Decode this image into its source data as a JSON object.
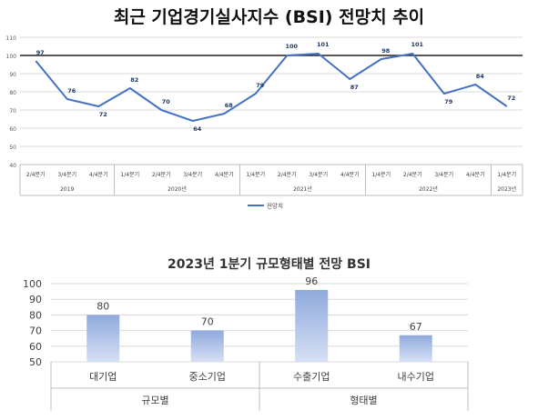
{
  "chart_data": [
    {
      "type": "line",
      "title": "최근 기업경기실사지수 (BSI) 전망치 추이",
      "categories": [
        "2/4분기",
        "3/4분기",
        "4/4분기",
        "1/4분기",
        "2/4분기",
        "3/4분기",
        "4/4분기",
        "1/4분기",
        "2/4분기",
        "3/4분기",
        "4/4분기",
        "1/4분기",
        "2/4분기",
        "3/4분기",
        "4/4분기",
        "1/4분기"
      ],
      "year_groups": [
        {
          "label": "2019",
          "span": 3
        },
        {
          "label": "2020년",
          "span": 4
        },
        {
          "label": "2021년",
          "span": 4
        },
        {
          "label": "2022년",
          "span": 4
        },
        {
          "label": "2023년",
          "span": 1
        }
      ],
      "series": [
        {
          "name": "전망치",
          "values": [
            97,
            76,
            72,
            82,
            70,
            64,
            68,
            79,
            100,
            101,
            87,
            98,
            101,
            79,
            84,
            72
          ]
        }
      ],
      "data_labels": [
        "97",
        "76",
        "72",
        "82",
        "70",
        "64",
        "68",
        "79",
        "100",
        "101",
        "87",
        "98",
        "101",
        "79",
        "84",
        "72"
      ],
      "ylim": [
        40,
        110
      ],
      "yticks": [
        40,
        50,
        60,
        70,
        80,
        90,
        100,
        110
      ],
      "reference_line": 100,
      "colors": {
        "line": "#4472c4",
        "label": "#1f3864",
        "reference": "#222222",
        "grid": "#d9d9d9"
      },
      "legend_position": "bottom"
    },
    {
      "type": "bar",
      "title": "2023년 1분기 규모형태별 전망 BSI",
      "categories": [
        "대기업",
        "중소기업",
        "수출기업",
        "내수기업"
      ],
      "groups": [
        {
          "label": "규모별",
          "span": 2
        },
        {
          "label": "형태별",
          "span": 2
        }
      ],
      "values": [
        80,
        70,
        96,
        67
      ],
      "data_labels": [
        "80",
        "70",
        "96",
        "67"
      ],
      "ylim": [
        50,
        100
      ],
      "yticks": [
        50,
        60,
        70,
        80,
        90,
        100
      ],
      "colors": {
        "bar_top": "#8faadc",
        "bar_bottom": "#d6e0f5",
        "grid": "#d9d9d9"
      }
    }
  ]
}
